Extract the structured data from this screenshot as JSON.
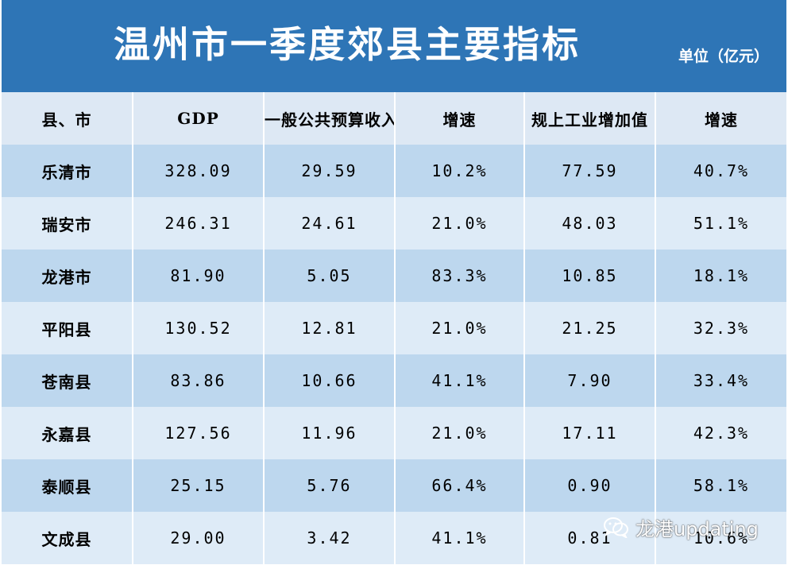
{
  "title": "温州市一季度郊县主要指标",
  "unit": "单位（亿元）",
  "columns": [
    "县、市",
    "GDP",
    "一般公共预算收入",
    "增速",
    "规上工业增加值",
    "增速"
  ],
  "rows": [
    [
      "乐清市",
      "328.09",
      "29.59",
      "10.2%",
      "77.59",
      "40.7%"
    ],
    [
      "瑞安市",
      "246.31",
      "24.61",
      "21.0%",
      "48.03",
      "51.1%"
    ],
    [
      "龙港市",
      "81.90",
      "5.05",
      "83.3%",
      "10.85",
      "18.1%"
    ],
    [
      "平阳县",
      "130.52",
      "12.81",
      "21.0%",
      "21.25",
      "32.3%"
    ],
    [
      "苍南县",
      "83.86",
      "10.66",
      "41.1%",
      "7.90",
      "33.4%"
    ],
    [
      "永嘉县",
      "127.56",
      "11.96",
      "21.0%",
      "17.11",
      "42.3%"
    ],
    [
      "泰顺县",
      "25.15",
      "5.76",
      "66.4%",
      "0.90",
      "58.1%"
    ],
    [
      "文成县",
      "29.00",
      "3.42",
      "41.1%",
      "0.81",
      "10.6%"
    ]
  ],
  "watermark": "龙港updating",
  "colors": {
    "header_bg": "#2e75b6",
    "header_row_bg": "#dde8f4",
    "row_dark": "#bdd7ee",
    "row_light": "#deebf7"
  }
}
